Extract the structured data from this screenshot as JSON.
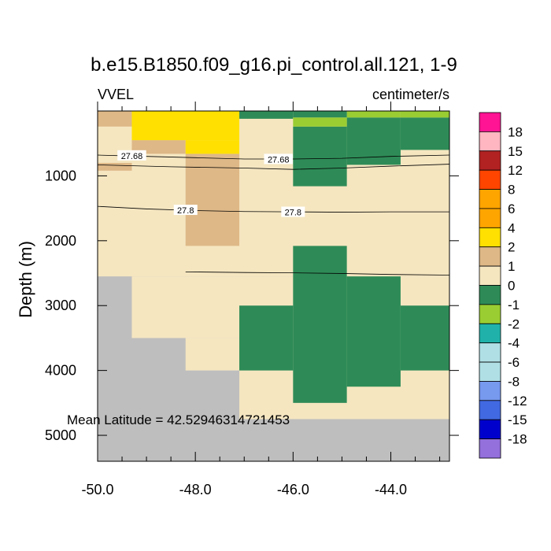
{
  "chart_data": {
    "type": "heatmap",
    "title": "b.e15.B1850.f09_g16.pi_control.all.121, 1-9",
    "left_label": "VVEL",
    "right_label": "centimeter/s",
    "ylabel": "Depth (m)",
    "xlabel": "",
    "xlim": [
      -50.0,
      -42.8
    ],
    "ylim": [
      5400,
      0
    ],
    "x_ticks": [
      -50.0,
      -48.0,
      -46.0,
      -44.0
    ],
    "x_tick_labels": [
      "-50.0",
      "-48.0",
      "-46.0",
      "-44.0"
    ],
    "y_ticks": [
      1000,
      2000,
      3000,
      4000,
      5000
    ],
    "y_tick_labels": [
      "1000",
      "2000",
      "3000",
      "4000",
      "5000"
    ],
    "annotation": "Mean Latitude = 42.52946314721453",
    "colorbar_labels": [
      "18",
      "15",
      "12",
      "8",
      "6",
      "4",
      "2",
      "1",
      "0",
      "-1",
      "-2",
      "-4",
      "-6",
      "-8",
      "-12",
      "-15",
      "-18"
    ],
    "colorbar_colors": [
      "#ff1493",
      "#ffb6c1",
      "#b22222",
      "#ff4500",
      "#ffa500",
      "#ffa500",
      "#ffe000",
      "#deb887",
      "#f5e6c0",
      "#2e8b57",
      "#9acd32",
      "#20b2aa",
      "#b0e0e6",
      "#b0e0e6",
      "#7799ee",
      "#4169e1",
      "#0000cd",
      "#9370db"
    ],
    "colors": {
      "land": "#bebebe",
      "c_0_1": "#f5e6c0",
      "c_1_2": "#deb887",
      "c_2_4": "#ffe000",
      "c_m1_0": "#2e8b57",
      "c_m2_m1": "#9acd32",
      "c_m4_m2": "#20b2aa",
      "c_m8_m4": "#b0e0e6",
      "c_m12_m8": "#7799ee",
      "c_m15_m12": "#4169e1"
    },
    "cells": [
      {
        "x": [
          -50.0,
          -42.8
        ],
        "y": [
          0,
          5400
        ],
        "c": "land"
      },
      {
        "x": [
          -50.0,
          -42.8
        ],
        "y": [
          0,
          2550
        ],
        "c": "c_0_1"
      },
      {
        "x": [
          -49.3,
          -42.8
        ],
        "y": [
          2550,
          3500
        ],
        "c": "c_0_1"
      },
      {
        "x": [
          -48.2,
          -42.8
        ],
        "y": [
          3500,
          4000
        ],
        "c": "c_0_1"
      },
      {
        "x": [
          -47.1,
          -42.8
        ],
        "y": [
          4000,
          4750
        ],
        "c": "c_0_1"
      },
      {
        "x": [
          -50.0,
          -49.3
        ],
        "y": [
          0,
          240
        ],
        "c": "c_1_2"
      },
      {
        "x": [
          -50.0,
          -49.3
        ],
        "y": [
          800,
          920
        ],
        "c": "c_1_2"
      },
      {
        "x": [
          -49.3,
          -48.2
        ],
        "y": [
          450,
          660
        ],
        "c": "c_1_2"
      },
      {
        "x": [
          -48.2,
          -47.1
        ],
        "y": [
          660,
          2080
        ],
        "c": "c_1_2"
      },
      {
        "x": [
          -49.3,
          -47.1
        ],
        "y": [
          0,
          450
        ],
        "c": "c_2_4"
      },
      {
        "x": [
          -48.2,
          -47.1
        ],
        "y": [
          450,
          660
        ],
        "c": "c_2_4"
      },
      {
        "x": [
          -47.1,
          -46.0
        ],
        "y": [
          0,
          120
        ],
        "c": "c_m1_0"
      },
      {
        "x": [
          -46.0,
          -44.9
        ],
        "y": [
          240,
          1160
        ],
        "c": "c_m1_0"
      },
      {
        "x": [
          -44.9,
          -43.8
        ],
        "y": [
          100,
          830
        ],
        "c": "c_m1_0"
      },
      {
        "x": [
          -43.8,
          -42.8
        ],
        "y": [
          100,
          600
        ],
        "c": "c_m1_0"
      },
      {
        "x": [
          -46.0,
          -44.9
        ],
        "y": [
          2080,
          4500
        ],
        "c": "c_m1_0"
      },
      {
        "x": [
          -44.9,
          -43.8
        ],
        "y": [
          2550,
          4250
        ],
        "c": "c_m1_0"
      },
      {
        "x": [
          -47.1,
          -46.0
        ],
        "y": [
          3000,
          4000
        ],
        "c": "c_m1_0"
      },
      {
        "x": [
          -43.8,
          -42.8
        ],
        "y": [
          3000,
          4000
        ],
        "c": "c_m1_0"
      },
      {
        "x": [
          -46.0,
          -44.9
        ],
        "y": [
          100,
          240
        ],
        "c": "c_m2_m1"
      },
      {
        "x": [
          -44.9,
          -43.8
        ],
        "y": [
          0,
          100
        ],
        "c": "c_m2_m1"
      },
      {
        "x": [
          -43.8,
          -42.8
        ],
        "y": [
          0,
          100
        ],
        "c": "c_m2_m1"
      },
      {
        "x": [
          -46.0,
          -44.9
        ],
        "y": [
          0,
          100
        ],
        "c": "c_m1_0"
      }
    ],
    "contours": [
      {
        "label": "27.68",
        "x": [
          -50.0,
          -49.0,
          -48.0,
          -47.0,
          -46.0,
          -45.0,
          -44.0,
          -42.8
        ],
        "y": [
          680,
          700,
          720,
          740,
          740,
          730,
          700,
          680
        ],
        "label_at": [
          [
            -49.3,
            690
          ],
          [
            -46.3,
            745
          ]
        ]
      },
      {
        "label": "",
        "x": [
          -50.0,
          -48.5,
          -47.0,
          -46.0,
          -45.0,
          -44.0,
          -42.8
        ],
        "y": [
          830,
          860,
          880,
          900,
          880,
          850,
          820
        ]
      },
      {
        "label": "27.8",
        "x": [
          -50.0,
          -49.0,
          -48.0,
          -47.0,
          -46.0,
          -45.0,
          -44.0,
          -42.8
        ],
        "y": [
          1470,
          1510,
          1535,
          1550,
          1555,
          1560,
          1555,
          1555
        ],
        "label_at": [
          [
            -48.2,
            1530
          ],
          [
            -46.0,
            1560
          ]
        ]
      },
      {
        "label": "",
        "x": [
          -48.2,
          -47.0,
          -46.0,
          -45.0,
          -44.0,
          -42.8
        ],
        "y": [
          2480,
          2490,
          2495,
          2505,
          2520,
          2530
        ]
      }
    ]
  }
}
